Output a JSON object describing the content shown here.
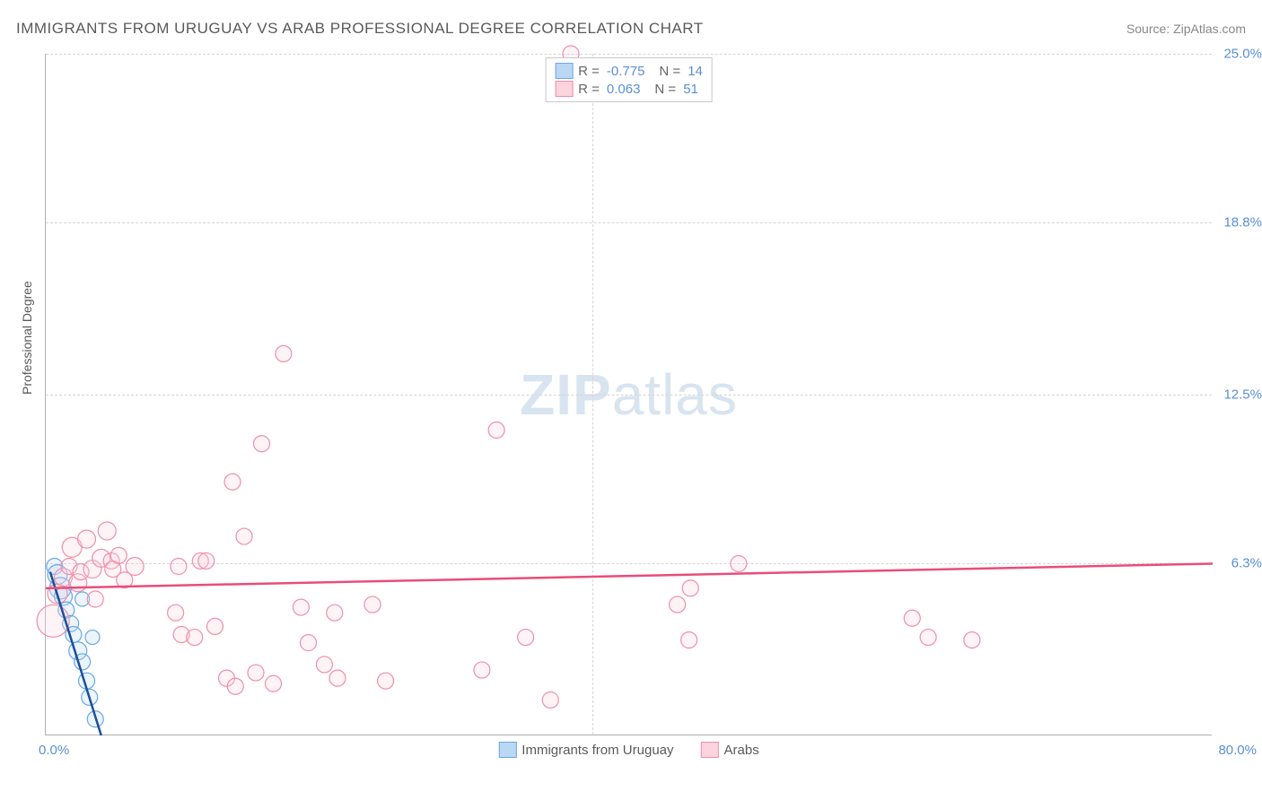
{
  "title": "IMMIGRANTS FROM URUGUAY VS ARAB PROFESSIONAL DEGREE CORRELATION CHART",
  "source": "Source: ZipAtlas.com",
  "watermark_bold": "ZIP",
  "watermark_light": "atlas",
  "chart": {
    "type": "scatter",
    "background_color": "#ffffff",
    "grid_color": "#d5d5d5",
    "axis_color": "#b0b0b0",
    "tick_label_color": "#5a8fd6",
    "xlim": [
      0,
      80
    ],
    "ylim": [
      0,
      25
    ],
    "x_left_label": "0.0%",
    "x_right_label": "80.0%",
    "y_ticks": [
      {
        "value": 6.3,
        "label": "6.3%"
      },
      {
        "value": 12.5,
        "label": "12.5%"
      },
      {
        "value": 18.8,
        "label": "18.8%"
      },
      {
        "value": 25.0,
        "label": "25.0%"
      }
    ],
    "x_gridlines_at": [
      37.5
    ],
    "y_axis_title": "Professional Degree",
    "marker_radius": 9,
    "marker_stroke_width": 1.2,
    "marker_fill_opacity": 0.28,
    "trendline_width": 2.5,
    "series": [
      {
        "name": "Immigrants from Uruguay",
        "color": "#6aa7e8",
        "fill": "#bad7f4",
        "trend_color": "#1b4f9c",
        "R": "-0.775",
        "N": "14",
        "trendline": {
          "x1": 0.3,
          "y1": 6.0,
          "x2": 3.8,
          "y2": 0.0
        },
        "points": [
          {
            "x": 0.6,
            "y": 6.2,
            "r": 9
          },
          {
            "x": 0.8,
            "y": 5.9,
            "r": 11
          },
          {
            "x": 1.0,
            "y": 5.4,
            "r": 12
          },
          {
            "x": 1.2,
            "y": 5.1,
            "r": 10
          },
          {
            "x": 1.4,
            "y": 4.6,
            "r": 9
          },
          {
            "x": 1.7,
            "y": 4.1,
            "r": 9
          },
          {
            "x": 1.9,
            "y": 3.7,
            "r": 9
          },
          {
            "x": 2.2,
            "y": 3.1,
            "r": 10
          },
          {
            "x": 2.5,
            "y": 2.7,
            "r": 9
          },
          {
            "x": 2.5,
            "y": 5.0,
            "r": 8
          },
          {
            "x": 2.8,
            "y": 2.0,
            "r": 9
          },
          {
            "x": 3.0,
            "y": 1.4,
            "r": 9
          },
          {
            "x": 3.4,
            "y": 0.6,
            "r": 9
          },
          {
            "x": 3.2,
            "y": 3.6,
            "r": 8
          }
        ]
      },
      {
        "name": "Arabs",
        "color": "#ef8fa8",
        "fill": "#fbd4de",
        "trend_color": "#e94d7a",
        "R": "0.063",
        "N": "51",
        "trendline": {
          "x1": 0.0,
          "y1": 5.4,
          "x2": 80.0,
          "y2": 6.3
        },
        "points": [
          {
            "x": 0.5,
            "y": 4.2,
            "r": 18
          },
          {
            "x": 0.8,
            "y": 5.2,
            "r": 11
          },
          {
            "x": 1.2,
            "y": 5.8,
            "r": 10
          },
          {
            "x": 1.6,
            "y": 6.2,
            "r": 9
          },
          {
            "x": 1.8,
            "y": 6.9,
            "r": 11
          },
          {
            "x": 2.2,
            "y": 5.6,
            "r": 10
          },
          {
            "x": 2.4,
            "y": 6.0,
            "r": 9
          },
          {
            "x": 2.8,
            "y": 7.2,
            "r": 10
          },
          {
            "x": 3.2,
            "y": 6.1,
            "r": 10
          },
          {
            "x": 3.4,
            "y": 5.0,
            "r": 9
          },
          {
            "x": 3.8,
            "y": 6.5,
            "r": 10
          },
          {
            "x": 4.2,
            "y": 7.5,
            "r": 10
          },
          {
            "x": 4.5,
            "y": 6.4,
            "r": 9
          },
          {
            "x": 4.6,
            "y": 6.1,
            "r": 9
          },
          {
            "x": 5.0,
            "y": 6.6,
            "r": 9
          },
          {
            "x": 5.4,
            "y": 5.7,
            "r": 9
          },
          {
            "x": 6.1,
            "y": 6.2,
            "r": 10
          },
          {
            "x": 8.9,
            "y": 4.5,
            "r": 9
          },
          {
            "x": 9.3,
            "y": 3.7,
            "r": 9
          },
          {
            "x": 9.1,
            "y": 6.2,
            "r": 9
          },
          {
            "x": 10.2,
            "y": 3.6,
            "r": 9
          },
          {
            "x": 10.6,
            "y": 6.4,
            "r": 9
          },
          {
            "x": 11.6,
            "y": 4.0,
            "r": 9
          },
          {
            "x": 12.4,
            "y": 2.1,
            "r": 9
          },
          {
            "x": 13.0,
            "y": 1.8,
            "r": 9
          },
          {
            "x": 12.8,
            "y": 9.3,
            "r": 9
          },
          {
            "x": 13.6,
            "y": 7.3,
            "r": 9
          },
          {
            "x": 14.4,
            "y": 2.3,
            "r": 9
          },
          {
            "x": 14.8,
            "y": 10.7,
            "r": 9
          },
          {
            "x": 15.6,
            "y": 1.9,
            "r": 9
          },
          {
            "x": 16.3,
            "y": 14.0,
            "r": 9
          },
          {
            "x": 17.5,
            "y": 4.7,
            "r": 9
          },
          {
            "x": 18.0,
            "y": 3.4,
            "r": 9
          },
          {
            "x": 19.1,
            "y": 2.6,
            "r": 9
          },
          {
            "x": 19.8,
            "y": 4.5,
            "r": 9
          },
          {
            "x": 20.0,
            "y": 2.1,
            "r": 9
          },
          {
            "x": 22.4,
            "y": 4.8,
            "r": 9
          },
          {
            "x": 23.3,
            "y": 2.0,
            "r": 9
          },
          {
            "x": 29.9,
            "y": 2.4,
            "r": 9
          },
          {
            "x": 30.9,
            "y": 11.2,
            "r": 9
          },
          {
            "x": 32.9,
            "y": 3.6,
            "r": 9
          },
          {
            "x": 34.6,
            "y": 1.3,
            "r": 9
          },
          {
            "x": 36.0,
            "y": 25.0,
            "r": 9
          },
          {
            "x": 43.3,
            "y": 4.8,
            "r": 9
          },
          {
            "x": 44.1,
            "y": 3.5,
            "r": 9
          },
          {
            "x": 47.5,
            "y": 6.3,
            "r": 9
          },
          {
            "x": 60.5,
            "y": 3.6,
            "r": 9
          },
          {
            "x": 63.5,
            "y": 3.5,
            "r": 9
          },
          {
            "x": 44.2,
            "y": 5.4,
            "r": 9
          },
          {
            "x": 59.4,
            "y": 4.3,
            "r": 9
          },
          {
            "x": 11.0,
            "y": 6.4,
            "r": 9
          }
        ]
      }
    ],
    "legend_bottom": [
      {
        "label": "Immigrants from Uruguay",
        "color": "#6aa7e8",
        "fill": "#bad7f4"
      },
      {
        "label": "Arabs",
        "color": "#ef8fa8",
        "fill": "#fbd4de"
      }
    ]
  }
}
